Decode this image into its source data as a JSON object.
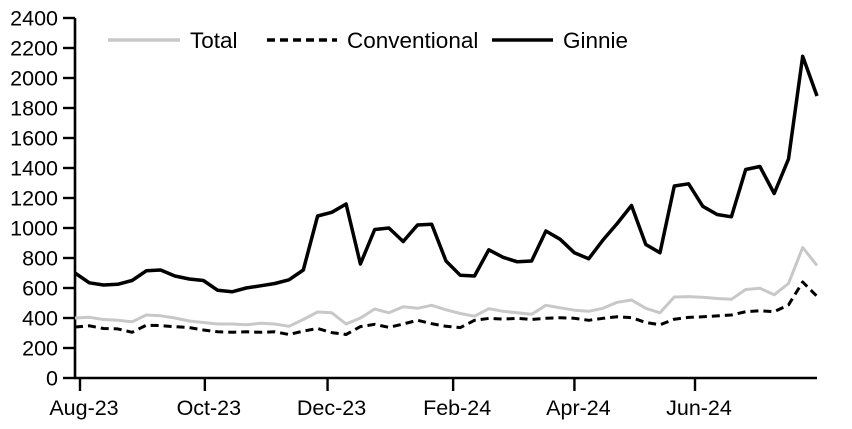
{
  "chart_data": {
    "type": "line",
    "title": "",
    "xlabel": "",
    "ylabel": "",
    "x_unit": "weekly observations, Aug-23 through Aug-24",
    "x_axis": {
      "tick_labels": [
        "Aug-23",
        "Oct-23",
        "Dec-23",
        "Feb-24",
        "Apr-24",
        "Jun-24"
      ],
      "tick_week_positions": [
        0.35,
        9.1,
        17.7,
        26.5,
        35.0,
        43.45
      ],
      "total_weeks": 52
    },
    "y_axis": {
      "min": 0,
      "max": 2400,
      "step": 200,
      "tick_labels": [
        "0",
        "200",
        "400",
        "600",
        "800",
        "1000",
        "1200",
        "1400",
        "1600",
        "1800",
        "2000",
        "2200",
        "2400"
      ]
    },
    "grid": false,
    "legend": {
      "position": "top-inside",
      "items": [
        {
          "label": "Total",
          "color": "#c8c8c8",
          "dash": "solid"
        },
        {
          "label": "Conventional",
          "color": "#000000",
          "dash": "dashed"
        },
        {
          "label": "Ginnie",
          "color": "#000000",
          "dash": "solid"
        }
      ]
    },
    "series": [
      {
        "name": "Total",
        "color": "#c8c8c8",
        "style": "solid",
        "stroke_width": 3,
        "values": [
          400,
          405,
          390,
          385,
          375,
          420,
          415,
          400,
          380,
          370,
          360,
          360,
          355,
          365,
          360,
          345,
          390,
          440,
          435,
          360,
          400,
          460,
          435,
          475,
          465,
          485,
          455,
          430,
          412,
          462,
          445,
          435,
          425,
          485,
          468,
          452,
          445,
          465,
          505,
          520,
          465,
          435,
          540,
          543,
          538,
          530,
          525,
          590,
          598,
          555,
          630,
          870,
          750
        ]
      },
      {
        "name": "Conventional",
        "color": "#000000",
        "style": "dashed",
        "stroke_width": 3,
        "values": [
          340,
          348,
          330,
          327,
          305,
          352,
          349,
          342,
          336,
          320,
          308,
          305,
          308,
          305,
          308,
          290,
          313,
          330,
          303,
          290,
          343,
          358,
          337,
          360,
          385,
          362,
          345,
          336,
          385,
          397,
          393,
          398,
          390,
          398,
          402,
          398,
          385,
          398,
          408,
          403,
          370,
          355,
          392,
          404,
          408,
          414,
          420,
          442,
          448,
          442,
          487,
          640,
          545
        ]
      },
      {
        "name": "Ginnie",
        "color": "#000000",
        "style": "solid",
        "stroke_width": 3.5,
        "values": [
          700,
          635,
          620,
          625,
          650,
          715,
          720,
          680,
          660,
          650,
          585,
          575,
          600,
          615,
          630,
          655,
          720,
          1080,
          1105,
          1160,
          760,
          990,
          1000,
          910,
          1020,
          1025,
          780,
          685,
          680,
          855,
          805,
          775,
          780,
          980,
          925,
          835,
          795,
          920,
          1030,
          1150,
          890,
          835,
          1280,
          1295,
          1145,
          1090,
          1075,
          1390,
          1410,
          1230,
          1460,
          2145,
          1880
        ]
      }
    ]
  }
}
